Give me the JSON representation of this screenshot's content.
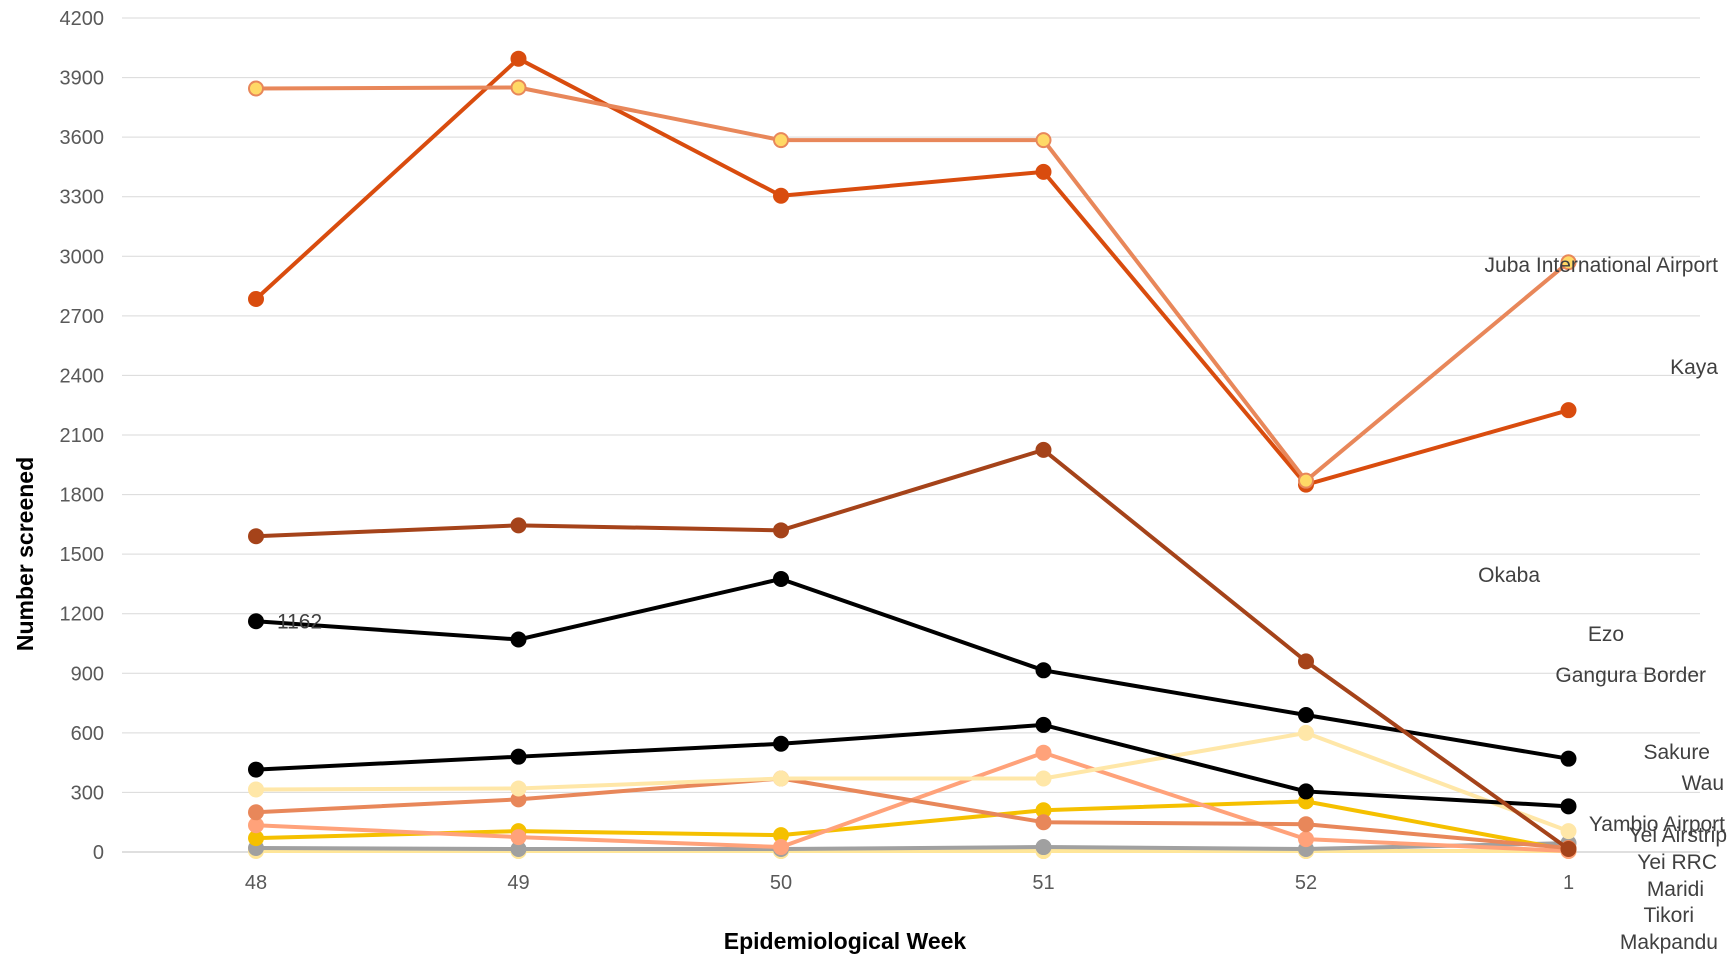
{
  "chart_data": {
    "type": "line",
    "xlabel": "Epidemiological Week",
    "ylabel": "Number screened",
    "categories": [
      "48",
      "49",
      "50",
      "51",
      "52",
      "1"
    ],
    "yticks": [
      "0",
      "300",
      "600",
      "900",
      "1200",
      "1500",
      "1800",
      "2100",
      "2400",
      "2700",
      "3000",
      "3300",
      "3600",
      "3900",
      "4200"
    ],
    "ylim": [
      0,
      4200
    ],
    "grid": true,
    "series": [
      {
        "name": "Juba International Airport",
        "color": "#E8875A",
        "marker_fill": "#FFD966",
        "values": [
          3845,
          3850,
          3585,
          3585,
          1870,
          2970
        ]
      },
      {
        "name": "Kaya",
        "color": "#D94C0E",
        "marker_fill": "#D94C0E",
        "values": [
          2785,
          3995,
          3305,
          3425,
          1850,
          2225
        ]
      },
      {
        "name": "Okaba",
        "color": "#A5431A",
        "marker_fill": "#A5431A",
        "values": [
          1590,
          1645,
          1620,
          2025,
          960,
          15
        ]
      },
      {
        "name": "Ezo",
        "color": "#000000",
        "marker_fill": "#000000",
        "values": [
          1162,
          1070,
          1375,
          915,
          690,
          470
        ]
      },
      {
        "name": "Gangura Border",
        "color": "#000000",
        "marker_fill": "#000000",
        "values": [
          415,
          480,
          545,
          640,
          305,
          230
        ]
      },
      {
        "name": "Sakure",
        "color": "#FFE7A8",
        "marker_fill": "#FFE7A8",
        "values": [
          315,
          320,
          370,
          370,
          600,
          105
        ]
      },
      {
        "name": "Wau",
        "color": "#E8875A",
        "marker_fill": "#E8875A",
        "values": [
          200,
          265,
          370,
          150,
          140,
          20
        ]
      },
      {
        "name": "Yambio Airport",
        "color": "#FFA27A",
        "marker_fill": "#FFA27A",
        "values": [
          135,
          75,
          25,
          500,
          65,
          5
        ]
      },
      {
        "name": "Yei Airstrip",
        "color": "#F5C000",
        "marker_fill": "#F5C000",
        "values": [
          70,
          105,
          85,
          210,
          255,
          10
        ]
      },
      {
        "name": "Yei RRC",
        "color": "#A0A0A0",
        "marker_fill": "#A0A0A0",
        "values": [
          20,
          15,
          15,
          25,
          15,
          45
        ]
      },
      {
        "name": "Maridi",
        "color": "#FFE699",
        "marker_fill": "#FFE699",
        "values": [
          15,
          5,
          5,
          5,
          5,
          5
        ]
      },
      {
        "name": "Tikori",
        "color": "#FFE699",
        "marker_fill": "#FFE699",
        "values": [
          10,
          5,
          5,
          5,
          5,
          5
        ]
      },
      {
        "name": "Makpandu",
        "color": "#FFE699",
        "marker_fill": "#FFE699",
        "values": [
          5,
          5,
          5,
          5,
          5,
          5
        ]
      }
    ],
    "annotations": [
      {
        "series": "Ezo",
        "category": "48",
        "text": "1162"
      }
    ]
  }
}
